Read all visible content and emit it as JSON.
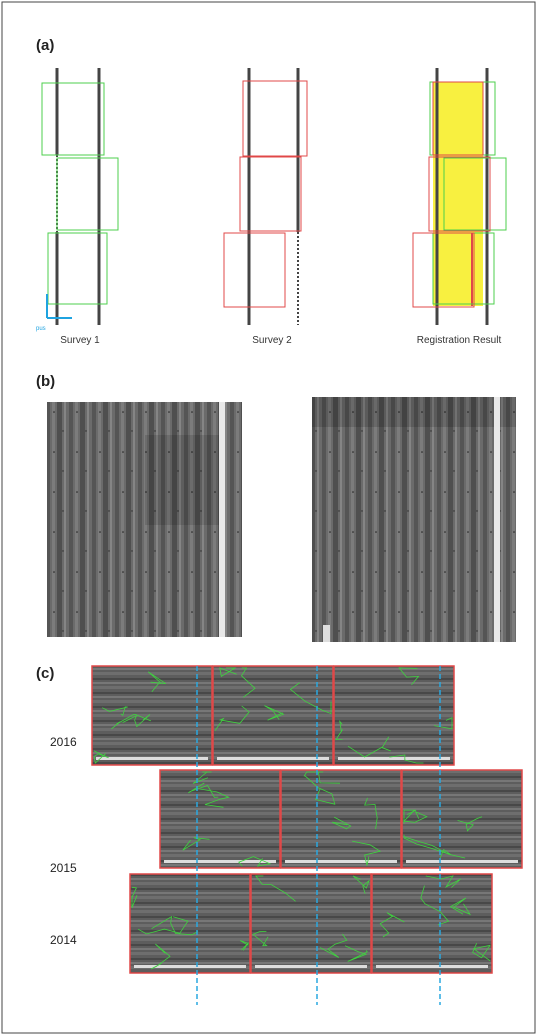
{
  "panel_a": {
    "label": "(a)",
    "axis_label": "pus",
    "captions": [
      "Survey 1",
      "Survey 2",
      "Registration Result"
    ]
  },
  "panel_b": {
    "label": "(b)"
  },
  "panel_c": {
    "label": "(c)",
    "years": [
      "2016",
      "2015",
      "2014"
    ]
  }
}
